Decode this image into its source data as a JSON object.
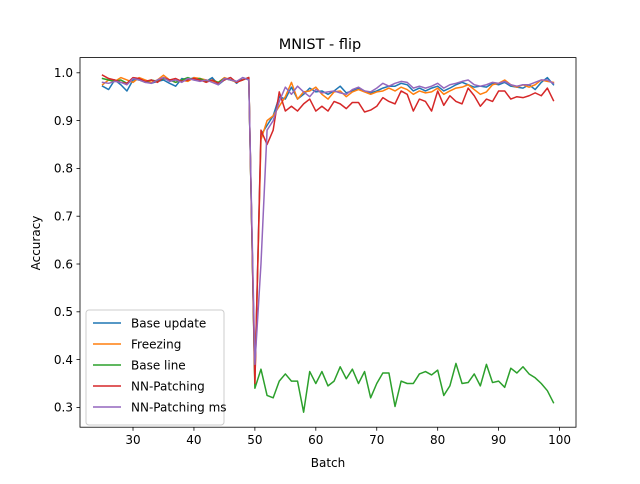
{
  "chart_data": {
    "type": "line",
    "title": "MNIST - flip",
    "xlabel": "Batch",
    "ylabel": "Accuracy",
    "xlim": [
      21.3,
      102.7
    ],
    "ylim": [
      0.2586,
      1.0318
    ],
    "xticks": [
      30,
      40,
      50,
      60,
      70,
      80,
      90,
      100
    ],
    "yticks": [
      0.3,
      0.4,
      0.5,
      0.6,
      0.7,
      0.8,
      0.9,
      1.0
    ],
    "xtick_labels": [
      "30",
      "40",
      "50",
      "60",
      "70",
      "80",
      "90",
      "100"
    ],
    "ytick_labels": [
      "0.3",
      "0.4",
      "0.5",
      "0.6",
      "0.7",
      "0.8",
      "0.9",
      "1.0"
    ],
    "grid": false,
    "legend": "lower-left",
    "x": [
      25,
      26,
      27,
      28,
      29,
      30,
      31,
      32,
      33,
      34,
      35,
      36,
      37,
      38,
      39,
      40,
      41,
      42,
      43,
      44,
      45,
      46,
      47,
      48,
      49,
      50,
      51,
      52,
      53,
      54,
      55,
      56,
      57,
      58,
      59,
      60,
      61,
      62,
      63,
      64,
      65,
      66,
      67,
      68,
      69,
      70,
      71,
      72,
      73,
      74,
      75,
      76,
      77,
      78,
      79,
      80,
      81,
      82,
      83,
      84,
      85,
      86,
      87,
      88,
      89,
      90,
      91,
      92,
      93,
      94,
      95,
      96,
      97,
      98,
      99
    ],
    "series": [
      {
        "name": "Base update",
        "color": "#1f77b4",
        "values": [
          0.972,
          0.965,
          0.985,
          0.975,
          0.962,
          0.985,
          0.988,
          0.982,
          0.978,
          0.982,
          0.985,
          0.978,
          0.972,
          0.988,
          0.985,
          0.99,
          0.985,
          0.982,
          0.99,
          0.975,
          0.985,
          0.99,
          0.978,
          0.99,
          0.985,
          0.36,
          0.87,
          0.89,
          0.91,
          0.95,
          0.945,
          0.97,
          0.945,
          0.955,
          0.968,
          0.96,
          0.962,
          0.955,
          0.962,
          0.972,
          0.958,
          0.962,
          0.968,
          0.962,
          0.958,
          0.962,
          0.968,
          0.972,
          0.972,
          0.978,
          0.975,
          0.962,
          0.968,
          0.962,
          0.968,
          0.972,
          0.962,
          0.968,
          0.975,
          0.98,
          0.975,
          0.97,
          0.972,
          0.97,
          0.978,
          0.975,
          0.98,
          0.972,
          0.97,
          0.968,
          0.975,
          0.965,
          0.98,
          0.99,
          0.975
        ]
      },
      {
        "name": "Freezing",
        "color": "#ff7f0e",
        "values": [
          0.975,
          0.985,
          0.982,
          0.99,
          0.985,
          0.98,
          0.99,
          0.985,
          0.98,
          0.985,
          0.995,
          0.985,
          0.98,
          0.985,
          0.982,
          0.99,
          0.988,
          0.985,
          0.982,
          0.98,
          0.99,
          0.985,
          0.98,
          0.985,
          0.99,
          0.35,
          0.86,
          0.9,
          0.91,
          0.93,
          0.95,
          0.98,
          0.945,
          0.96,
          0.962,
          0.97,
          0.955,
          0.945,
          0.96,
          0.962,
          0.95,
          0.96,
          0.965,
          0.96,
          0.955,
          0.96,
          0.962,
          0.968,
          0.962,
          0.97,
          0.965,
          0.955,
          0.962,
          0.958,
          0.96,
          0.968,
          0.955,
          0.962,
          0.968,
          0.97,
          0.975,
          0.965,
          0.955,
          0.96,
          0.975,
          0.978,
          0.985,
          0.975,
          0.97,
          0.975,
          0.97,
          0.975,
          0.985,
          0.982,
          0.98
        ]
      },
      {
        "name": "Base line",
        "color": "#2ca02c",
        "values": [
          0.988,
          0.985,
          0.982,
          0.985,
          0.978,
          0.988,
          0.985,
          0.98,
          0.985,
          0.982,
          0.988,
          0.985,
          0.98,
          0.985,
          0.99,
          0.985,
          0.988,
          0.982,
          0.985,
          0.98,
          0.988,
          0.985,
          0.982,
          0.985,
          0.99,
          0.34,
          0.38,
          0.325,
          0.32,
          0.355,
          0.37,
          0.355,
          0.355,
          0.29,
          0.375,
          0.35,
          0.375,
          0.345,
          0.355,
          0.385,
          0.36,
          0.38,
          0.35,
          0.375,
          0.32,
          0.35,
          0.372,
          0.372,
          0.302,
          0.355,
          0.35,
          0.35,
          0.37,
          0.375,
          0.368,
          0.378,
          0.325,
          0.345,
          0.392,
          0.35,
          0.352,
          0.37,
          0.345,
          0.39,
          0.352,
          0.355,
          0.342,
          0.382,
          0.372,
          0.385,
          0.37,
          0.362,
          0.35,
          0.335,
          0.31
        ]
      },
      {
        "name": "NN-Patching",
        "color": "#d62728",
        "values": [
          0.995,
          0.988,
          0.985,
          0.98,
          0.978,
          0.99,
          0.988,
          0.982,
          0.985,
          0.98,
          0.99,
          0.985,
          0.988,
          0.982,
          0.985,
          0.988,
          0.985,
          0.98,
          0.985,
          0.978,
          0.985,
          0.99,
          0.98,
          0.985,
          0.99,
          0.35,
          0.88,
          0.85,
          0.88,
          0.96,
          0.92,
          0.93,
          0.92,
          0.935,
          0.945,
          0.92,
          0.93,
          0.92,
          0.94,
          0.935,
          0.925,
          0.938,
          0.938,
          0.918,
          0.922,
          0.93,
          0.948,
          0.94,
          0.935,
          0.962,
          0.955,
          0.92,
          0.945,
          0.94,
          0.92,
          0.962,
          0.932,
          0.952,
          0.94,
          0.935,
          0.968,
          0.952,
          0.93,
          0.945,
          0.94,
          0.962,
          0.962,
          0.945,
          0.95,
          0.948,
          0.952,
          0.958,
          0.952,
          0.968,
          0.942
        ]
      },
      {
        "name": "NN-Patching ms",
        "color": "#9467bd",
        "values": [
          0.98,
          0.978,
          0.982,
          0.98,
          0.975,
          0.988,
          0.985,
          0.98,
          0.978,
          0.985,
          0.99,
          0.982,
          0.985,
          0.98,
          0.988,
          0.985,
          0.982,
          0.985,
          0.98,
          0.975,
          0.988,
          0.985,
          0.982,
          0.99,
          0.985,
          0.39,
          0.6,
          0.88,
          0.9,
          0.94,
          0.97,
          0.955,
          0.972,
          0.96,
          0.95,
          0.965,
          0.958,
          0.96,
          0.962,
          0.958,
          0.955,
          0.965,
          0.97,
          0.962,
          0.96,
          0.968,
          0.978,
          0.972,
          0.978,
          0.982,
          0.98,
          0.968,
          0.972,
          0.968,
          0.972,
          0.978,
          0.968,
          0.975,
          0.978,
          0.982,
          0.985,
          0.975,
          0.972,
          0.975,
          0.98,
          0.978,
          0.982,
          0.975,
          0.972,
          0.975,
          0.975,
          0.98,
          0.985,
          0.985,
          0.978
        ]
      }
    ]
  }
}
